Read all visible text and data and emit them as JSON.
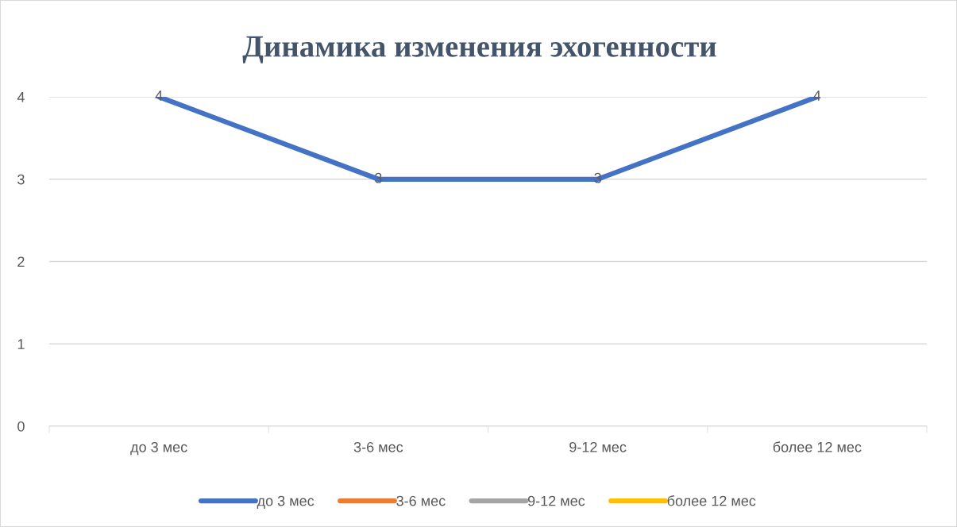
{
  "chart_data": {
    "type": "line",
    "title": "Динамика изменения эхогенности",
    "categories": [
      "до 3 мес",
      "3-6 мес",
      "9-12 мес",
      "более 12 мес"
    ],
    "series": [
      {
        "name": "до 3 мес",
        "color": "#4472c4",
        "values": [
          4,
          3,
          3,
          4
        ]
      },
      {
        "name": "3-6 мес",
        "color": "#ed7d31",
        "values": [
          null,
          null,
          null,
          null
        ]
      },
      {
        "name": "9-12 мес",
        "color": "#a5a5a5",
        "values": [
          null,
          null,
          null,
          null
        ]
      },
      {
        "name": "более 12 мес",
        "color": "#ffc000",
        "values": [
          null,
          null,
          null,
          null
        ]
      }
    ],
    "ylim": [
      0,
      4
    ],
    "yticks": [
      0,
      1,
      2,
      3,
      4
    ],
    "grid": "y",
    "legend": "bottom",
    "data_labels": true,
    "marker": "none",
    "line_style": "solid"
  }
}
